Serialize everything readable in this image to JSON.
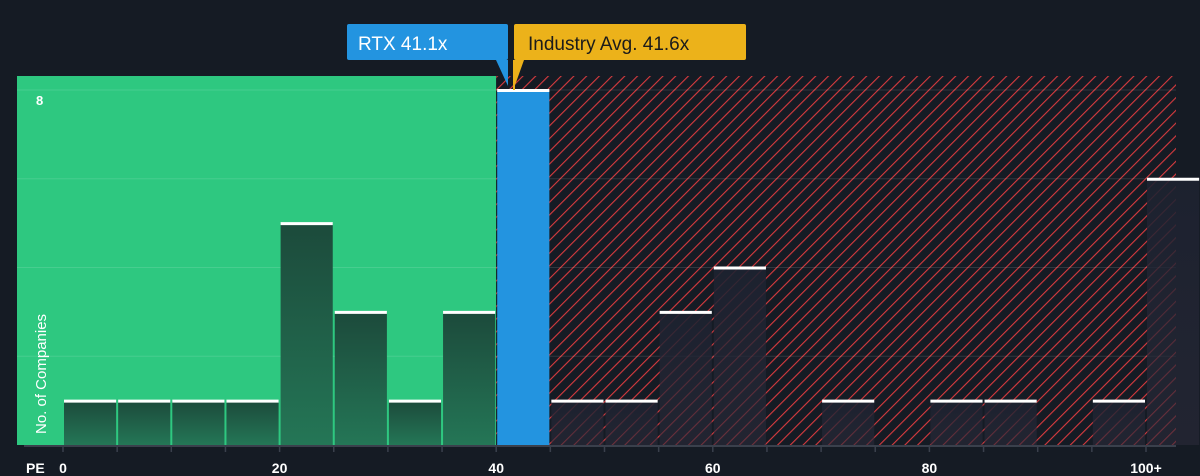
{
  "chart_data": {
    "type": "bar",
    "xlabel": "PE",
    "ylabel": "No. of Companies",
    "bin_width": 5,
    "bins_start": [
      0,
      5,
      10,
      15,
      20,
      25,
      30,
      35,
      40,
      45,
      50,
      55,
      60,
      65,
      70,
      75,
      80,
      85,
      90,
      95,
      100
    ],
    "values": [
      1,
      1,
      1,
      1,
      5,
      3,
      1,
      3,
      8,
      1,
      1,
      3,
      4,
      0,
      1,
      0,
      1,
      1,
      0,
      1,
      6
    ],
    "x_ticks": [
      "0",
      "20",
      "40",
      "60",
      "80",
      "100+"
    ],
    "x_tick_values": [
      0,
      20,
      40,
      60,
      80,
      100
    ],
    "y_ticks": [
      "8"
    ],
    "ylim": [
      0,
      8
    ],
    "xlim": [
      0,
      105
    ],
    "grid": true,
    "highlight_bin": 40,
    "fair_value_threshold": 41.6,
    "colors": {
      "background": "#151b24",
      "below_zone": "#2ec880",
      "above_zone_hatch": "#e0393e",
      "highlight": "#2394e0",
      "industry": "#ecb21a",
      "bar_dark": "#1f5a45"
    },
    "callouts": {
      "company": "RTX 41.1x",
      "industry": "Industry Avg. 41.6x"
    }
  }
}
